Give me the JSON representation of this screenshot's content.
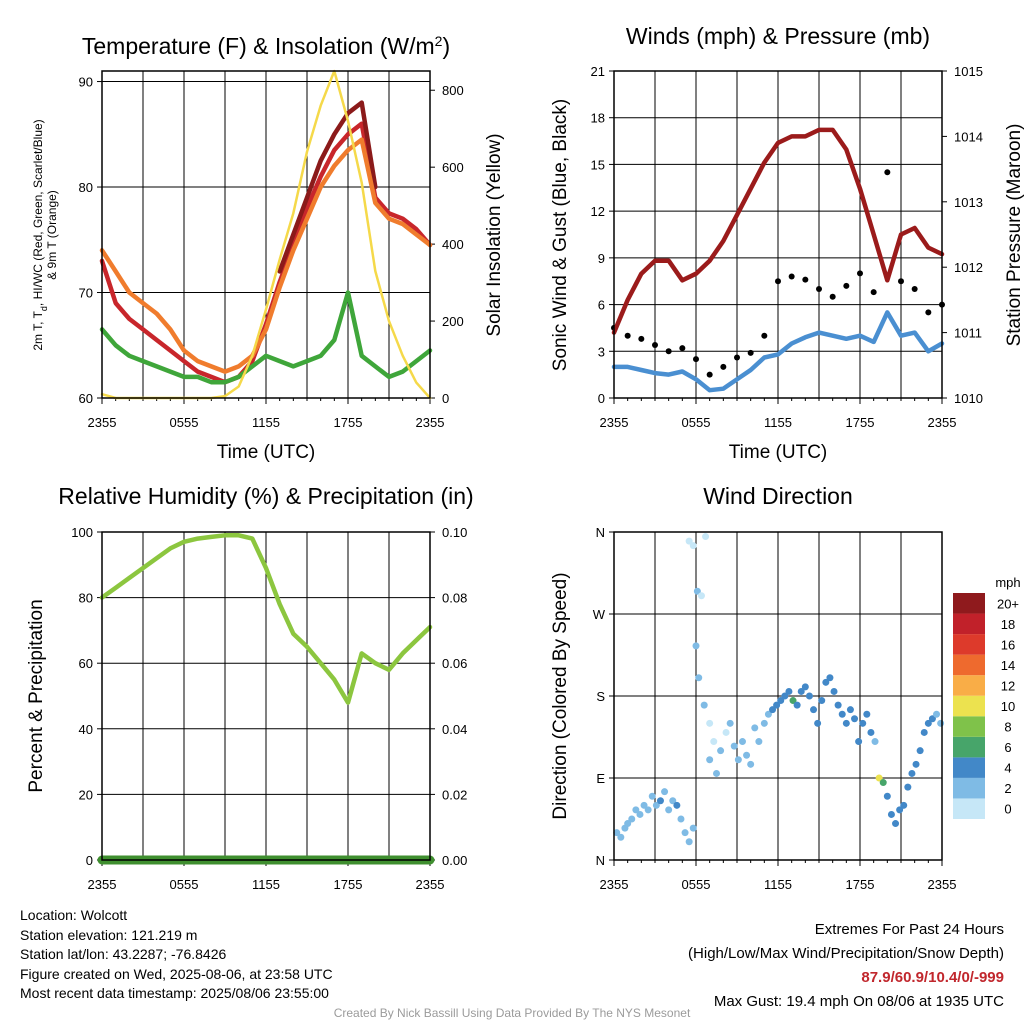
{
  "chart_data": [
    {
      "type": "line",
      "title": "Temperature (F) & Insolation (W/m²)",
      "xlabel": "Time (UTC)",
      "ylabel": "2m T, Td, HI/WC (Red, Green, Scarlet/Blue) & 9m T (Orange)",
      "y2label": "Solar Insolation (Yellow)",
      "xticks": [
        "2355",
        "0555",
        "1155",
        "1755",
        "2355"
      ],
      "ylim": [
        60,
        91
      ],
      "yticks": [
        60,
        70,
        80,
        90
      ],
      "y2lim": [
        0,
        850
      ],
      "y2ticks": [
        0,
        200,
        400,
        600,
        800
      ],
      "x_hours": [
        0,
        1,
        2,
        3,
        4,
        5,
        6,
        7,
        8,
        9,
        10,
        11,
        12,
        13,
        14,
        15,
        16,
        17,
        18,
        19,
        20,
        21,
        22,
        23,
        24
      ],
      "series": [
        {
          "key": "t2m",
          "color": "#c8262b",
          "axis": "left",
          "values": [
            73,
            69,
            67.5,
            66.5,
            65.5,
            64.5,
            63.5,
            62.5,
            62,
            61.5,
            62,
            63.5,
            67,
            71,
            74.5,
            78,
            81,
            83.5,
            85,
            86,
            79,
            77.5,
            77,
            76,
            74.5
          ]
        },
        {
          "key": "heat_index",
          "color": "#8b1a1a",
          "axis": "left",
          "values": [
            null,
            null,
            null,
            null,
            null,
            null,
            null,
            null,
            null,
            null,
            null,
            null,
            null,
            72,
            75.5,
            79,
            82.5,
            85,
            87,
            88,
            80,
            null,
            null,
            null,
            null
          ]
        },
        {
          "key": "t9m",
          "color": "#f07c2d",
          "axis": "left",
          "values": [
            74,
            72,
            70,
            69,
            68,
            66.5,
            64.5,
            63.5,
            63,
            62.5,
            63,
            64,
            66.5,
            70.5,
            74,
            77,
            80,
            82,
            83.5,
            84.5,
            78.5,
            77,
            76.5,
            75.5,
            74.5
          ]
        },
        {
          "key": "dewpoint",
          "color": "#3fa63a",
          "axis": "left",
          "values": [
            66.5,
            65,
            64,
            63.5,
            63,
            62.5,
            62,
            62,
            61.5,
            61.5,
            62,
            63,
            64,
            63.5,
            63,
            63.5,
            64,
            65.5,
            70,
            64,
            63,
            62,
            62.5,
            63.5,
            64.5
          ]
        },
        {
          "key": "insolation",
          "color": "#f5d94a",
          "axis": "right",
          "values": [
            10,
            0,
            0,
            0,
            0,
            0,
            0,
            0,
            0,
            5,
            30,
            110,
            230,
            360,
            480,
            640,
            760,
            850,
            720,
            560,
            330,
            200,
            110,
            40,
            0
          ]
        }
      ]
    },
    {
      "type": "line",
      "title": "Winds (mph) & Pressure (mb)",
      "xlabel": "Time (UTC)",
      "ylabel": "Sonic Wind & Gust (Blue, Black)",
      "y2label": "Station Pressure (Maroon)",
      "xticks": [
        "2355",
        "0555",
        "1155",
        "1755",
        "2355"
      ],
      "ylim": [
        0,
        21
      ],
      "yticks": [
        0,
        3,
        6,
        9,
        12,
        15,
        18,
        21
      ],
      "y2lim": [
        1010,
        1015
      ],
      "y2ticks": [
        1010,
        1011,
        1012,
        1013,
        1014,
        1015
      ],
      "x_hours": [
        0,
        1,
        2,
        3,
        4,
        5,
        6,
        7,
        8,
        9,
        10,
        11,
        12,
        13,
        14,
        15,
        16,
        17,
        18,
        19,
        20,
        21,
        22,
        23,
        24
      ],
      "series": [
        {
          "key": "wind",
          "color": "#4a8fd1",
          "axis": "left",
          "values": [
            2,
            2,
            1.8,
            1.6,
            1.5,
            1.7,
            1.2,
            0.5,
            0.6,
            1.2,
            1.8,
            2.6,
            2.8,
            3.5,
            3.9,
            4.2,
            4.0,
            3.8,
            4.0,
            3.6,
            5.5,
            4.0,
            4.2,
            3.0,
            3.5
          ]
        },
        {
          "key": "gust",
          "color": "#000000",
          "axis": "left",
          "values": [
            4.5,
            4.0,
            3.8,
            3.4,
            3.0,
            3.2,
            2.5,
            1.5,
            2.0,
            2.6,
            2.9,
            4.0,
            7.5,
            7.8,
            7.6,
            7.0,
            6.5,
            7.2,
            8.0,
            6.8,
            14.5,
            7.5,
            7.0,
            5.5,
            6.0
          ]
        },
        {
          "key": "pressure",
          "color": "#9b1b1b",
          "axis": "right",
          "values": [
            1011.0,
            1011.5,
            1011.9,
            1012.1,
            1012.1,
            1011.8,
            1011.9,
            1012.1,
            1012.4,
            1012.8,
            1013.2,
            1013.6,
            1013.9,
            1014.0,
            1014.0,
            1014.1,
            1014.1,
            1013.8,
            1013.2,
            1012.5,
            1011.8,
            1012.5,
            1012.6,
            1012.3,
            1012.2
          ]
        }
      ]
    },
    {
      "type": "line",
      "title": "Relative Humidity (%) & Precipitation (in)",
      "xlabel": "",
      "ylabel": "Percent & Precipitation",
      "xticks": [
        "2355",
        "0555",
        "1155",
        "1755",
        "2355"
      ],
      "ylim": [
        0,
        100
      ],
      "yticks": [
        0,
        20,
        40,
        60,
        80,
        100
      ],
      "y2lim": [
        0,
        0.1
      ],
      "y2ticks": [
        "0.00",
        "0.02",
        "0.04",
        "0.06",
        "0.08",
        "0.10"
      ],
      "x_hours": [
        0,
        1,
        2,
        3,
        4,
        5,
        6,
        7,
        8,
        9,
        10,
        11,
        12,
        13,
        14,
        15,
        16,
        17,
        18,
        19,
        20,
        21,
        22,
        23,
        24
      ],
      "series": [
        {
          "key": "rh",
          "color": "#8cc63f",
          "axis": "left",
          "values": [
            80,
            83,
            86,
            89,
            92,
            95,
            97,
            98,
            98.5,
            99,
            99,
            98,
            89,
            78,
            69,
            65,
            60,
            55,
            48,
            63,
            60,
            58,
            63,
            67,
            71
          ]
        },
        {
          "key": "precip",
          "color": "#3f8f2f",
          "axis": "right",
          "values": [
            0,
            0,
            0,
            0,
            0,
            0,
            0,
            0,
            0,
            0,
            0,
            0,
            0,
            0,
            0,
            0,
            0,
            0,
            0,
            0,
            0,
            0,
            0,
            0,
            0
          ]
        }
      ]
    },
    {
      "type": "scatter",
      "title": "Wind Direction",
      "xlabel": "",
      "ylabel": "Direction (Colored By Speed)",
      "xticks": [
        "2355",
        "0555",
        "1155",
        "1755",
        "2355"
      ],
      "ylim": [
        0,
        360
      ],
      "yticks": [
        {
          "v": 0,
          "t": "N"
        },
        {
          "v": 90,
          "t": "E"
        },
        {
          "v": 180,
          "t": "S"
        },
        {
          "v": 270,
          "t": "W"
        },
        {
          "v": 360,
          "t": "N"
        }
      ],
      "colorbar_unit": "mph",
      "colorbar": [
        {
          "label": "0",
          "color": "#c6e7f7"
        },
        {
          "label": "2",
          "color": "#7fbbe5"
        },
        {
          "label": "4",
          "color": "#4288c8"
        },
        {
          "label": "6",
          "color": "#47a56a"
        },
        {
          "label": "8",
          "color": "#7fc24a"
        },
        {
          "label": "10",
          "color": "#ece24f"
        },
        {
          "label": "12",
          "color": "#f9ad47"
        },
        {
          "label": "14",
          "color": "#ee6a2e"
        },
        {
          "label": "16",
          "color": "#dd3a2b"
        },
        {
          "label": "18",
          "color": "#c1212a"
        },
        {
          "label": "20+",
          "color": "#8f1a1d"
        }
      ],
      "points": [
        [
          0.2,
          30,
          2
        ],
        [
          0.5,
          25,
          2
        ],
        [
          0.8,
          35,
          1
        ],
        [
          1.0,
          40,
          2
        ],
        [
          1.3,
          45,
          2
        ],
        [
          1.6,
          55,
          2
        ],
        [
          1.9,
          50,
          1
        ],
        [
          2.2,
          60,
          2
        ],
        [
          2.5,
          55,
          2
        ],
        [
          2.8,
          70,
          1
        ],
        [
          3.1,
          60,
          2
        ],
        [
          3.4,
          65,
          3
        ],
        [
          3.7,
          75,
          2
        ],
        [
          4.0,
          55,
          1
        ],
        [
          4.3,
          65,
          2
        ],
        [
          4.6,
          60,
          3
        ],
        [
          4.9,
          45,
          1
        ],
        [
          5.2,
          30,
          1
        ],
        [
          5.5,
          20,
          1
        ],
        [
          5.8,
          35,
          1
        ],
        [
          5.5,
          350,
          0.5
        ],
        [
          5.8,
          345,
          0.5
        ],
        [
          6.1,
          295,
          1
        ],
        [
          6.4,
          290,
          0.5
        ],
        [
          6.7,
          355,
          0.5
        ],
        [
          6.0,
          235,
          1
        ],
        [
          6.2,
          200,
          1.5
        ],
        [
          6.6,
          170,
          1
        ],
        [
          7.0,
          150,
          0.5
        ],
        [
          7.3,
          130,
          0.5
        ],
        [
          7.0,
          110,
          1
        ],
        [
          7.5,
          95,
          1
        ],
        [
          7.8,
          120,
          1
        ],
        [
          8.2,
          140,
          0.5
        ],
        [
          8.5,
          150,
          2
        ],
        [
          8.8,
          125,
          1
        ],
        [
          9.1,
          110,
          1
        ],
        [
          9.4,
          130,
          2
        ],
        [
          9.7,
          115,
          1
        ],
        [
          10.0,
          105,
          1
        ],
        [
          10.3,
          145,
          2
        ],
        [
          10.6,
          130,
          1
        ],
        [
          11.0,
          150,
          2
        ],
        [
          11.3,
          160,
          2
        ],
        [
          11.6,
          165,
          3
        ],
        [
          11.9,
          170,
          3
        ],
        [
          12.2,
          175,
          4
        ],
        [
          12.5,
          180,
          4
        ],
        [
          12.8,
          185,
          4
        ],
        [
          13.1,
          175,
          5
        ],
        [
          13.4,
          170,
          4
        ],
        [
          13.7,
          185,
          3
        ],
        [
          14.0,
          190,
          4
        ],
        [
          14.3,
          180,
          4
        ],
        [
          14.6,
          165,
          3
        ],
        [
          14.9,
          150,
          3
        ],
        [
          15.2,
          175,
          4
        ],
        [
          15.5,
          195,
          3
        ],
        [
          15.8,
          200,
          4
        ],
        [
          16.1,
          185,
          3
        ],
        [
          16.4,
          170,
          3
        ],
        [
          16.7,
          160,
          4
        ],
        [
          17.0,
          150,
          3
        ],
        [
          17.3,
          165,
          3
        ],
        [
          17.6,
          155,
          4
        ],
        [
          17.9,
          130,
          3
        ],
        [
          18.2,
          150,
          3
        ],
        [
          18.5,
          160,
          4
        ],
        [
          18.8,
          140,
          3
        ],
        [
          19.1,
          130,
          2
        ],
        [
          19.4,
          90,
          10
        ],
        [
          19.7,
          85,
          6
        ],
        [
          20.0,
          70,
          4
        ],
        [
          20.3,
          50,
          4
        ],
        [
          20.6,
          40,
          3
        ],
        [
          20.9,
          55,
          3
        ],
        [
          21.2,
          60,
          4
        ],
        [
          21.5,
          80,
          4
        ],
        [
          21.8,
          95,
          4
        ],
        [
          22.1,
          105,
          3
        ],
        [
          22.4,
          120,
          3
        ],
        [
          22.7,
          140,
          3
        ],
        [
          23.0,
          150,
          3
        ],
        [
          23.3,
          155,
          3
        ],
        [
          23.6,
          160,
          2
        ],
        [
          23.9,
          150,
          2
        ]
      ]
    }
  ],
  "info": {
    "location": "Location: Wolcott",
    "elevation": "Station elevation: 121.219 m",
    "latlon": "Station lat/lon: 43.2287; -76.8426",
    "created": "Figure created on Wed, 2025-08-06, at 23:58 UTC",
    "recent": "Most recent data timestamp: 2025/08/06 23:55:00"
  },
  "extremes": {
    "title": "Extremes For Past 24 Hours",
    "subtitle": "(High/Low/Max Wind/Precipitation/Snow Depth)",
    "values": "87.9/60.9/10.4/0/-999",
    "gust": "Max Gust: 19.4 mph On 08/06 at 1935 UTC"
  },
  "credit": "Created By Nick Bassill Using Data Provided By The NYS Mesonet"
}
